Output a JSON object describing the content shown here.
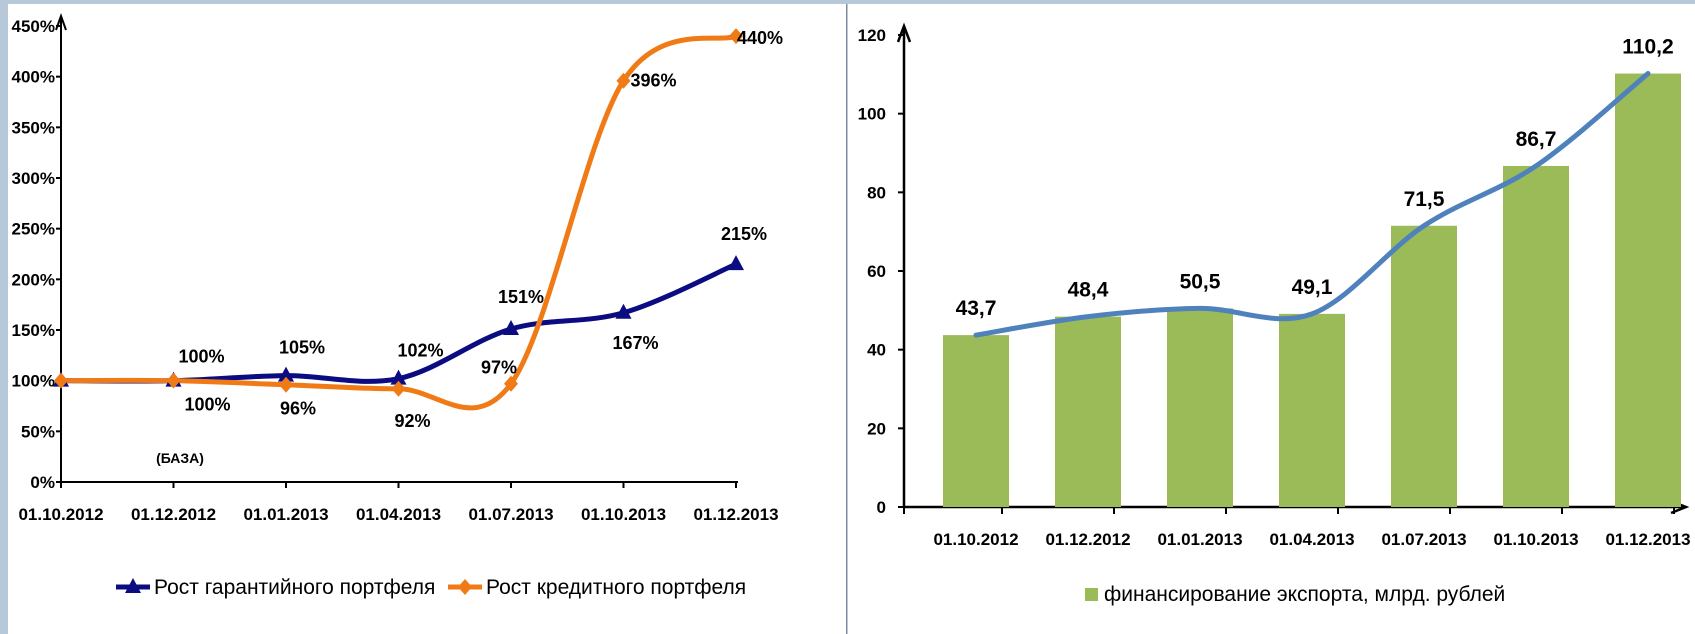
{
  "colors": {
    "guarantee": "#0b0b82",
    "credit": "#f07b16",
    "bars": "#9bbb59",
    "trend": "#4f81bd"
  },
  "chart_data": [
    {
      "type": "line",
      "categories": [
        "01.10.2012",
        "01.12.2012",
        "01.01.2013",
        "01.04.2013",
        "01.07.2013",
        "01.10.2013",
        "01.12.2013"
      ],
      "series": [
        {
          "name": "Рост гарантийного портфеля",
          "values": [
            100,
            100,
            105,
            102,
            151,
            167,
            215
          ],
          "labels": [
            "",
            "100%",
            "105%",
            "102%",
            "151%",
            "167%",
            "215%"
          ],
          "marker": "triangle"
        },
        {
          "name": "Рост кредитного портфеля",
          "values": [
            100,
            100,
            96,
            92,
            97,
            396,
            440
          ],
          "labels": [
            "",
            "100%",
            "96%",
            "92%",
            "97%",
            "396%",
            "440%"
          ],
          "marker": "diamond"
        }
      ],
      "ylim": [
        0,
        450
      ],
      "yticks": [
        "0%",
        "50%",
        "100%",
        "150%",
        "200%",
        "250%",
        "300%",
        "350%",
        "400%",
        "450%"
      ],
      "annotation": "(БАЗА)",
      "legend_position": "bottom"
    },
    {
      "type": "bar",
      "categories": [
        "01.10.2012",
        "01.12.2012",
        "01.01.2013",
        "01.04.2013",
        "01.07.2013",
        "01.10.2013",
        "01.12.2013"
      ],
      "series": [
        {
          "name": "финансирование экспорта, млрд. рублей",
          "values": [
            43.7,
            48.4,
            50.5,
            49.1,
            71.5,
            86.7,
            110.2
          ],
          "labels": [
            "43,7",
            "48,4",
            "50,5",
            "49,1",
            "71,5",
            "86,7",
            "110,2"
          ]
        }
      ],
      "trend_line": true,
      "ylim": [
        0,
        120
      ],
      "yticks": [
        "0",
        "20",
        "40",
        "60",
        "80",
        "100",
        "120"
      ],
      "legend_position": "bottom"
    }
  ]
}
